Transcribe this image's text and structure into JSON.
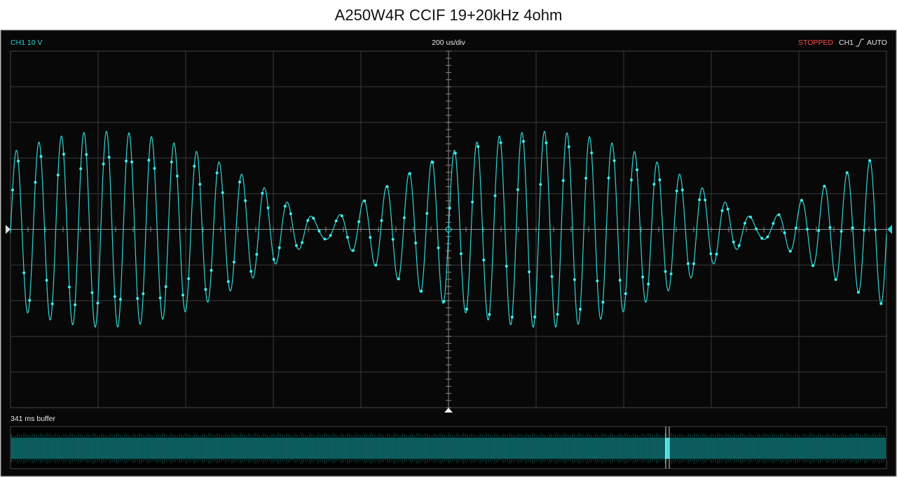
{
  "title": "A250W4R CCIF 19+20kHz 4ohm",
  "status_bar": {
    "channel_scale": "CH1 10 V",
    "timebase": "200 us/div",
    "run_state": "STOPPED",
    "trigger_channel": "CH1",
    "trigger_mode": "AUTO"
  },
  "buffer": {
    "label": "341 ms buffer"
  }
}
